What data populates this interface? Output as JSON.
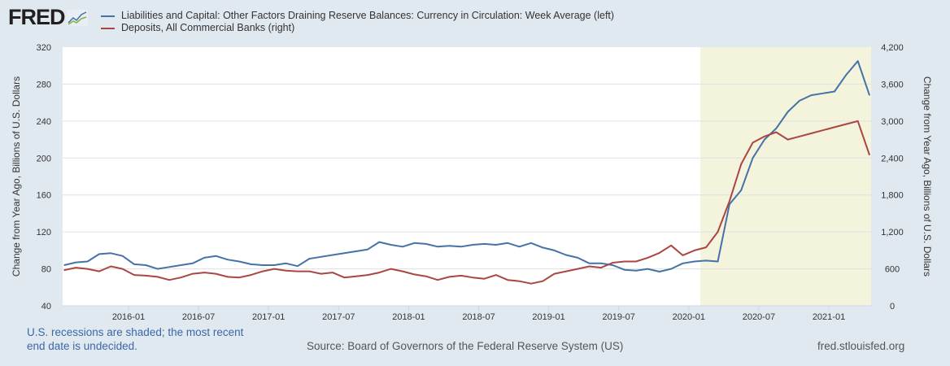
{
  "header": {
    "logo": "FRED"
  },
  "footer": {
    "note": "U.S. recessions are shaded; the most recent end date is undecided.",
    "source": "Source: Board of Governors of the Federal Reserve System (US)",
    "site": "fred.stlouisfed.org"
  },
  "chart_data": {
    "type": "line",
    "title": "",
    "ylabel_left": "Change from Year Ago, Billions of U.S. Dollars",
    "ylabel_right": "Change from Year Ago, Billions of U.S. Dollars",
    "ylim_left": [
      40,
      320
    ],
    "ylim_right": [
      0,
      4200
    ],
    "yticks_left": [
      "40",
      "80",
      "120",
      "160",
      "200",
      "240",
      "280",
      "320"
    ],
    "yticks_right": [
      "0",
      "600",
      "1,200",
      "1,800",
      "2,400",
      "3,000",
      "3,600",
      "4,200"
    ],
    "xticks": [
      "2016-01",
      "2016-07",
      "2017-01",
      "2017-07",
      "2018-01",
      "2018-07",
      "2019-01",
      "2019-07",
      "2020-01",
      "2020-07",
      "2021-01"
    ],
    "xrange": [
      "2015-07",
      "2021-04"
    ],
    "recession": {
      "start": "2020-02",
      "end": "2021-04"
    },
    "grid": true,
    "x": [
      "2015-07",
      "2015-08",
      "2015-09",
      "2015-10",
      "2015-11",
      "2015-12",
      "2016-01",
      "2016-02",
      "2016-03",
      "2016-04",
      "2016-05",
      "2016-06",
      "2016-07",
      "2016-08",
      "2016-09",
      "2016-10",
      "2016-11",
      "2016-12",
      "2017-01",
      "2017-02",
      "2017-03",
      "2017-04",
      "2017-05",
      "2017-06",
      "2017-07",
      "2017-08",
      "2017-09",
      "2017-10",
      "2017-11",
      "2017-12",
      "2018-01",
      "2018-02",
      "2018-03",
      "2018-04",
      "2018-05",
      "2018-06",
      "2018-07",
      "2018-08",
      "2018-09",
      "2018-10",
      "2018-11",
      "2018-12",
      "2019-01",
      "2019-02",
      "2019-03",
      "2019-04",
      "2019-05",
      "2019-06",
      "2019-07",
      "2019-08",
      "2019-09",
      "2019-10",
      "2019-11",
      "2019-12",
      "2020-01",
      "2020-02",
      "2020-03",
      "2020-04",
      "2020-05",
      "2020-06",
      "2020-07",
      "2020-08",
      "2020-09",
      "2020-10",
      "2020-11",
      "2020-12",
      "2021-01",
      "2021-02",
      "2021-03",
      "2021-04"
    ],
    "series": [
      {
        "name": "Liabilities and Capital: Other Factors Draining Reserve Balances: Currency in Circulation: Week Average (left)",
        "axis": "left",
        "color": "#4572a7",
        "values": [
          84,
          87,
          88,
          96,
          97,
          94,
          85,
          84,
          80,
          82,
          84,
          86,
          92,
          94,
          90,
          88,
          85,
          84,
          84,
          86,
          83,
          91,
          93,
          95,
          97,
          99,
          101,
          109,
          106,
          104,
          108,
          107,
          104,
          105,
          104,
          106,
          107,
          106,
          108,
          104,
          108,
          103,
          100,
          95,
          92,
          86,
          86,
          84,
          79,
          78,
          80,
          77,
          80,
          86,
          88,
          89,
          88,
          150,
          165,
          200,
          220,
          232,
          250,
          262,
          268,
          270,
          272,
          290,
          305,
          268
        ]
      },
      {
        "name": "Deposits, All Commercial Banks (right)",
        "axis": "right",
        "color": "#aa4643",
        "values": [
          580,
          620,
          600,
          560,
          640,
          600,
          500,
          490,
          470,
          420,
          460,
          520,
          540,
          520,
          470,
          460,
          500,
          560,
          600,
          570,
          560,
          560,
          520,
          540,
          460,
          480,
          500,
          540,
          600,
          560,
          510,
          480,
          420,
          470,
          490,
          460,
          440,
          500,
          420,
          400,
          360,
          400,
          520,
          560,
          600,
          640,
          620,
          700,
          720,
          720,
          780,
          860,
          980,
          820,
          900,
          950,
          1200,
          1700,
          2300,
          2650,
          2750,
          2820,
          2700,
          2750,
          2800,
          2850,
          2900,
          2950,
          3000,
          2450
        ]
      }
    ]
  }
}
